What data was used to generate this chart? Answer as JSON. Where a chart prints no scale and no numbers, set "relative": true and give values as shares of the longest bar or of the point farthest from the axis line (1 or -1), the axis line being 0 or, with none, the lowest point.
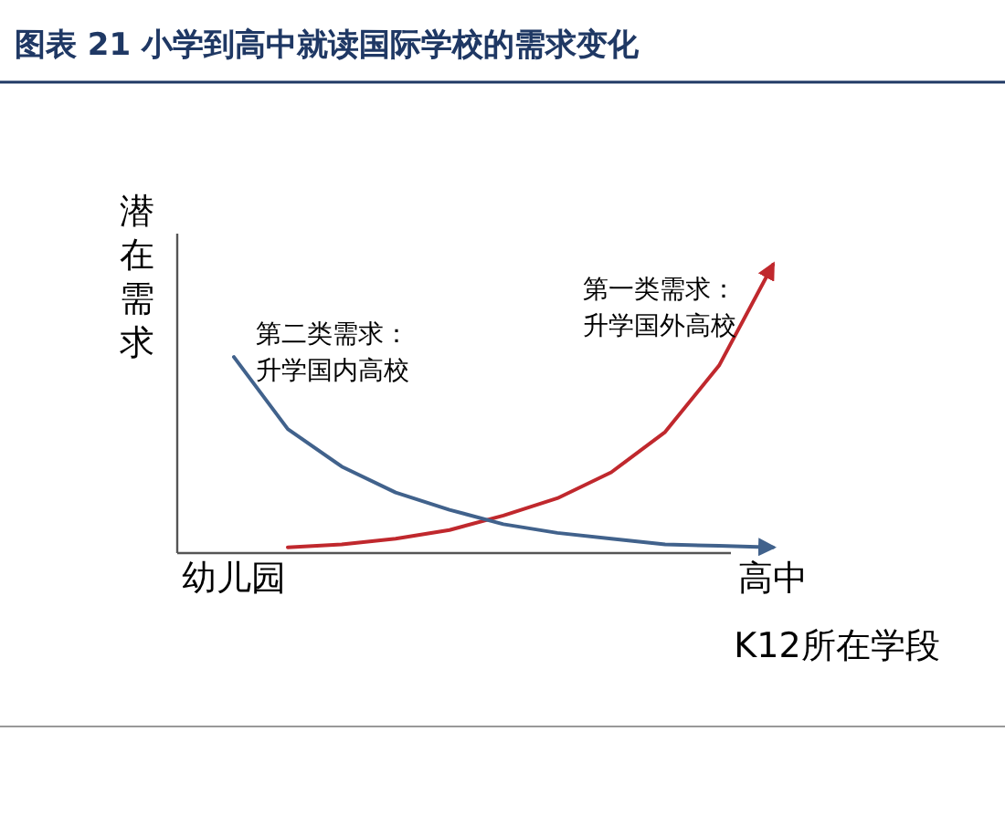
{
  "chart_data": {
    "type": "line",
    "title": "图表 21 小学到高中就读国际学校的需求变化",
    "xlabel": "K12所在学段",
    "ylabel": "潜在需求",
    "relative": true,
    "categories": [
      "幼儿园",
      null,
      null,
      null,
      null,
      null,
      null,
      null,
      null,
      null,
      "高中"
    ],
    "series": [
      {
        "name": "第一类需求：升学国外高校",
        "color": "#c0282d",
        "values": [
          null,
          0.02,
          0.03,
          0.05,
          0.08,
          0.13,
          0.19,
          0.28,
          0.42,
          0.65,
          1.0
        ]
      },
      {
        "name": "第二类需求：升学国内高校",
        "color": "#41628c",
        "values": [
          0.68,
          0.43,
          0.3,
          0.21,
          0.15,
          0.1,
          0.07,
          0.05,
          0.03,
          0.025,
          0.02
        ]
      }
    ]
  }
}
